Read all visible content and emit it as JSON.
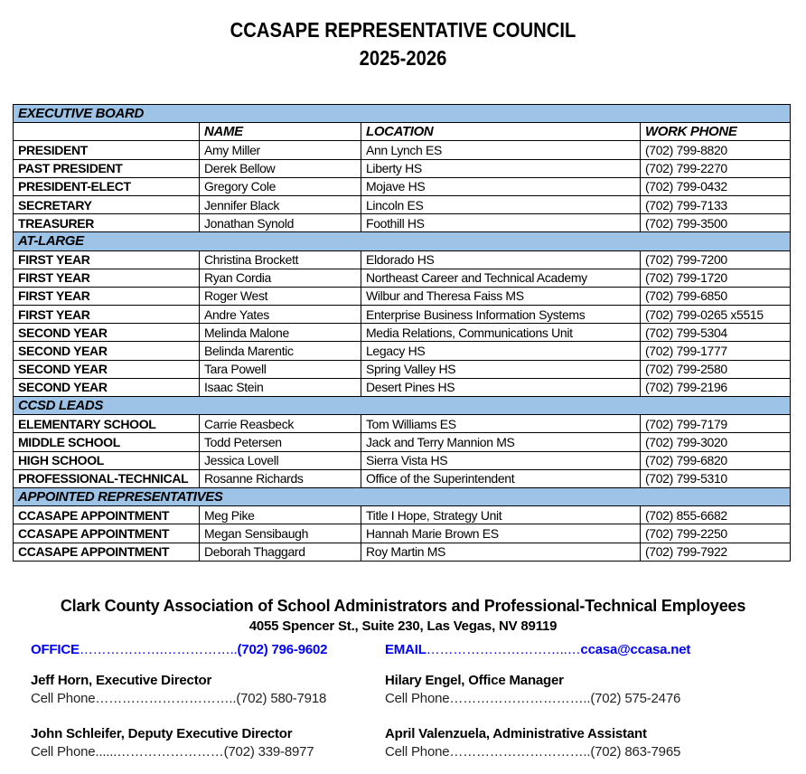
{
  "title": {
    "line1": "CCASAPE REPRESENTATIVE COUNCIL",
    "line2": "2025-2026"
  },
  "table": {
    "columns": [
      "",
      "NAME",
      "LOCATION",
      "WORK PHONE"
    ],
    "section_color": "#9dc3e6",
    "sections": [
      {
        "label": "EXECUTIVE BOARD",
        "show_columns": true,
        "rows": [
          [
            "PRESIDENT",
            "Amy Miller",
            "Ann Lynch ES",
            "(702) 799-8820"
          ],
          [
            "PAST PRESIDENT",
            "Derek Bellow",
            "Liberty HS",
            "(702) 799-2270"
          ],
          [
            "PRESIDENT-ELECT",
            "Gregory Cole",
            "Mojave HS",
            "(702) 799-0432"
          ],
          [
            "SECRETARY",
            "Jennifer Black",
            "Lincoln ES",
            "(702) 799-7133"
          ],
          [
            "TREASURER",
            "Jonathan Synold",
            "Foothill HS",
            "(702) 799-3500"
          ]
        ]
      },
      {
        "label": "AT-LARGE",
        "rows": [
          [
            "FIRST YEAR",
            "Christina Brockett",
            "Eldorado HS",
            "(702) 799-7200"
          ],
          [
            "FIRST YEAR",
            "Ryan Cordia",
            "Northeast Career and Technical Academy",
            "(702) 799-1720"
          ],
          [
            "FIRST YEAR",
            "Roger West",
            "Wilbur and Theresa Faiss MS",
            "(702) 799-6850"
          ],
          [
            "FIRST YEAR",
            "Andre Yates",
            "Enterprise Business Information Systems",
            "(702) 799-0265 x5515"
          ],
          [
            "SECOND YEAR",
            "Melinda Malone",
            "Media Relations, Communications Unit",
            "(702) 799-5304"
          ],
          [
            "SECOND YEAR",
            "Belinda Marentic",
            "Legacy HS",
            "(702) 799-1777"
          ],
          [
            "SECOND YEAR",
            "Tara Powell",
            "Spring Valley HS",
            "(702) 799-2580"
          ],
          [
            "SECOND YEAR",
            "Isaac Stein",
            "Desert Pines HS",
            "(702) 799-2196"
          ]
        ]
      },
      {
        "label": "CCSD LEADS",
        "rows": [
          [
            "ELEMENTARY SCHOOL",
            "Carrie Reasbeck",
            "Tom Williams ES",
            "(702) 799-7179"
          ],
          [
            "MIDDLE SCHOOL",
            "Todd Petersen",
            "Jack and Terry Mannion MS",
            "(702) 799-3020"
          ],
          [
            "HIGH SCHOOL",
            "Jessica Lovell",
            "Sierra Vista HS",
            "(702) 799-6820"
          ],
          [
            "PROFESSIONAL-TECHNICAL",
            "Rosanne Richards",
            "Office of the Superintendent",
            "(702) 799-5310"
          ]
        ]
      },
      {
        "label": "APPOINTED REPRESENTATIVES",
        "rows": [
          [
            "CCASAPE APPOINTMENT",
            "Meg Pike",
            "Title I Hope, Strategy Unit",
            "(702) 855-6682"
          ],
          [
            "CCASAPE APPOINTMENT",
            "Megan Sensibaugh",
            "Hannah Marie Brown ES",
            "(702) 799-2250"
          ],
          [
            "CCASAPE APPOINTMENT",
            "Deborah Thaggard",
            "Roy Martin MS",
            "(702) 799-7922"
          ]
        ]
      }
    ]
  },
  "footer": {
    "org": "Clark County Association of School Administrators and Professional-Technical Employees",
    "address": "4055 Spencer St., Suite 230, Las Vegas, NV 89119",
    "link_color": "#0000ff",
    "office": {
      "label": "OFFICE",
      "dots": "……………….……………..",
      "value": "(702) 796-9602"
    },
    "email": {
      "label": "EMAIL",
      "dots": "…………………………..…",
      "value": "ccasa@ccasa.net"
    },
    "contacts": [
      {
        "name": "Jeff Horn, Executive Director",
        "label": "Cell Phone",
        "dots": "…………………………..",
        "phone": "(702) 580-7918"
      },
      {
        "name": "Hilary Engel, Office Manager",
        "label": "Cell Phone",
        "dots": "…………………………..",
        "phone": "(702) 575-2476"
      },
      {
        "name": "John Schleifer, Deputy Executive Director",
        "label": "Cell Phone",
        "dots": "......……………………",
        "phone": "(702) 339-8977"
      },
      {
        "name": "April Valenzuela, Administrative Assistant",
        "label": "Cell Phone",
        "dots": "…………………………..",
        "phone": "(702) 863-7965"
      }
    ]
  }
}
